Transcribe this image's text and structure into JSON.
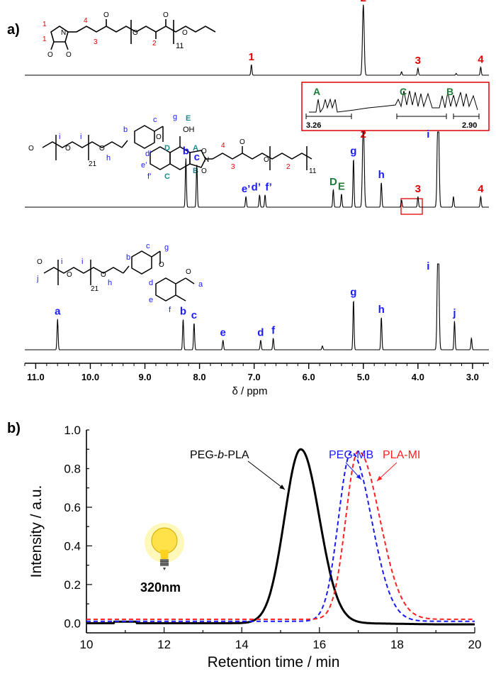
{
  "panel_a": {
    "label": "a)",
    "inset": {
      "peaks": [
        "A",
        "C",
        "B"
      ],
      "left": "3.26",
      "right": "2.90"
    },
    "chart_data": {
      "type": "line",
      "xlabel": "δ / ppm",
      "xlim": [
        11.2,
        2.7
      ],
      "x_ticks": [
        "11.0",
        "10.0",
        "9.0",
        "8.0",
        "7.0",
        "6.0",
        "5.0",
        "4.0",
        "3.0"
      ],
      "x_tick_values": [
        11,
        10,
        9,
        8,
        7,
        6,
        5,
        4,
        3
      ],
      "series": [
        {
          "peaks": [
            {
              "ppm": 7.05,
              "height": 0.18,
              "label": "1",
              "color": "#e00000"
            },
            {
              "ppm": 5.0,
              "height": 1.2,
              "label": "2",
              "color": "#e00000"
            },
            {
              "ppm": 4.3,
              "height": 0.06,
              "label": "",
              "color": "#e00000"
            },
            {
              "ppm": 4.0,
              "height": 0.12,
              "label": "3",
              "color": "#e00000"
            },
            {
              "ppm": 3.3,
              "height": 0.03,
              "label": "",
              "color": "#e00000"
            },
            {
              "ppm": 2.85,
              "height": 0.14,
              "label": "4",
              "color": "#e00000"
            }
          ]
        },
        {
          "peaks": [
            {
              "ppm": 8.25,
              "height": 0.55,
              "label": "b",
              "color": "#1a1aff"
            },
            {
              "ppm": 8.05,
              "height": 0.48,
              "label": "c",
              "color": "#1a1aff"
            },
            {
              "ppm": 7.15,
              "height": 0.12,
              "label": "e’",
              "color": "#1a1aff"
            },
            {
              "ppm": 6.9,
              "height": 0.14,
              "label": "d’",
              "color": "#1a1aff"
            },
            {
              "ppm": 6.8,
              "height": 0.14,
              "label": "f’",
              "color": "#1a1aff"
            },
            {
              "ppm": 5.55,
              "height": 0.2,
              "label": "D",
              "color": "#1f7a3a"
            },
            {
              "ppm": 5.4,
              "height": 0.15,
              "label": "E",
              "color": "#1f7a3a"
            },
            {
              "ppm": 5.18,
              "height": 0.55,
              "label": "g",
              "color": "#1a1aff"
            },
            {
              "ppm": 5.0,
              "height": 1.0,
              "label": "2",
              "color": "#e00000"
            },
            {
              "ppm": 4.67,
              "height": 0.28,
              "label": "h",
              "color": "#1a1aff"
            },
            {
              "ppm": 4.3,
              "height": 0.08,
              "label": "",
              "color": "#1a1aff"
            },
            {
              "ppm": 4.0,
              "height": 0.12,
              "label": "3",
              "color": "#e00000"
            },
            {
              "ppm": 3.63,
              "height": 1.3,
              "label": "i",
              "color": "#1a1aff"
            },
            {
              "ppm": 3.35,
              "height": 0.12,
              "label": "",
              "color": "#1a1aff"
            },
            {
              "ppm": 2.85,
              "height": 0.12,
              "label": "4",
              "color": "#e00000"
            }
          ]
        },
        {
          "peaks": [
            {
              "ppm": 10.6,
              "height": 0.32,
              "label": "a",
              "color": "#1a1aff"
            },
            {
              "ppm": 8.3,
              "height": 0.32,
              "label": "b",
              "color": "#1a1aff"
            },
            {
              "ppm": 8.1,
              "height": 0.28,
              "label": "c",
              "color": "#1a1aff"
            },
            {
              "ppm": 7.57,
              "height": 0.1,
              "label": "e",
              "color": "#1a1aff"
            },
            {
              "ppm": 6.88,
              "height": 0.1,
              "label": "d",
              "color": "#1a1aff"
            },
            {
              "ppm": 6.65,
              "height": 0.12,
              "label": "f",
              "color": "#1a1aff"
            },
            {
              "ppm": 5.75,
              "height": 0.04,
              "label": "",
              "color": "#1a1aff"
            },
            {
              "ppm": 5.18,
              "height": 0.52,
              "label": "g",
              "color": "#1a1aff"
            },
            {
              "ppm": 4.67,
              "height": 0.34,
              "label": "h",
              "color": "#1a1aff"
            },
            {
              "ppm": 3.63,
              "height": 1.3,
              "label": "i",
              "color": "#1a1aff"
            },
            {
              "ppm": 3.33,
              "height": 0.3,
              "label": "j",
              "color": "#1a1aff"
            },
            {
              "ppm": 3.02,
              "height": 0.12,
              "label": "",
              "color": "#1a1aff"
            }
          ]
        }
      ]
    },
    "structures": {
      "top": {
        "ring_nums": [
          "1",
          "1",
          "4",
          "3",
          "2"
        ],
        "repeat": "11"
      },
      "mid": {
        "letters": [
          "b",
          "c",
          "g",
          "E",
          "OH",
          "D",
          "A",
          "d’",
          "e’",
          "f’",
          "C",
          "B",
          "i",
          "i",
          "h"
        ],
        "nums": [
          "4",
          "3",
          "2"
        ],
        "repeat_peg": "21",
        "repeat_pla": "11"
      },
      "bottom": {
        "letters": [
          "j",
          "i",
          "i",
          "h",
          "b",
          "c",
          "g",
          "d",
          "e",
          "f",
          "a"
        ],
        "repeat_peg": "21"
      }
    }
  },
  "panel_b": {
    "label": "b)",
    "light": "320nm",
    "chart_data": {
      "type": "line",
      "xlabel": "Retention time / min",
      "ylabel": "Intensity / a.u.",
      "xlim": [
        10,
        20
      ],
      "ylim": [
        -0.05,
        1.0
      ],
      "x_ticks": [
        "10",
        "12",
        "14",
        "16",
        "18",
        "20"
      ],
      "x_tick_values": [
        10,
        12,
        14,
        16,
        18,
        20
      ],
      "y_ticks": [
        "0.0",
        "0.2",
        "0.4",
        "0.6",
        "0.8",
        "1.0"
      ],
      "y_tick_values": [
        0,
        0.2,
        0.4,
        0.6,
        0.8,
        1.0
      ],
      "series": [
        {
          "name": "PEG-b-PLA",
          "color": "#000000",
          "dash": "",
          "peak": 15.52,
          "height": 0.9,
          "left_w": 0.42,
          "right_w": 0.48,
          "baseline": 0.0
        },
        {
          "name": "PEG-MB",
          "color": "#1a1aff",
          "dash": "6,4",
          "peak": 16.82,
          "height": 0.875,
          "left_w": 0.33,
          "right_w": 0.52,
          "baseline": 0.01
        },
        {
          "name": "PLA-MI",
          "color": "#ff2020",
          "dash": "6,4",
          "peak": 17.0,
          "height": 0.87,
          "left_w": 0.32,
          "right_w": 0.55,
          "baseline": 0.02
        }
      ],
      "annotations": [
        {
          "text_parts": [
            "PEG-",
            {
              "italic": "b"
            },
            "-PLA"
          ],
          "color": "#000000"
        },
        {
          "text_parts": [
            "PEG-MB"
          ],
          "color": "#1a1aff"
        },
        {
          "text_parts": [
            "PLA-MI"
          ],
          "color": "#ff2020"
        }
      ]
    }
  }
}
